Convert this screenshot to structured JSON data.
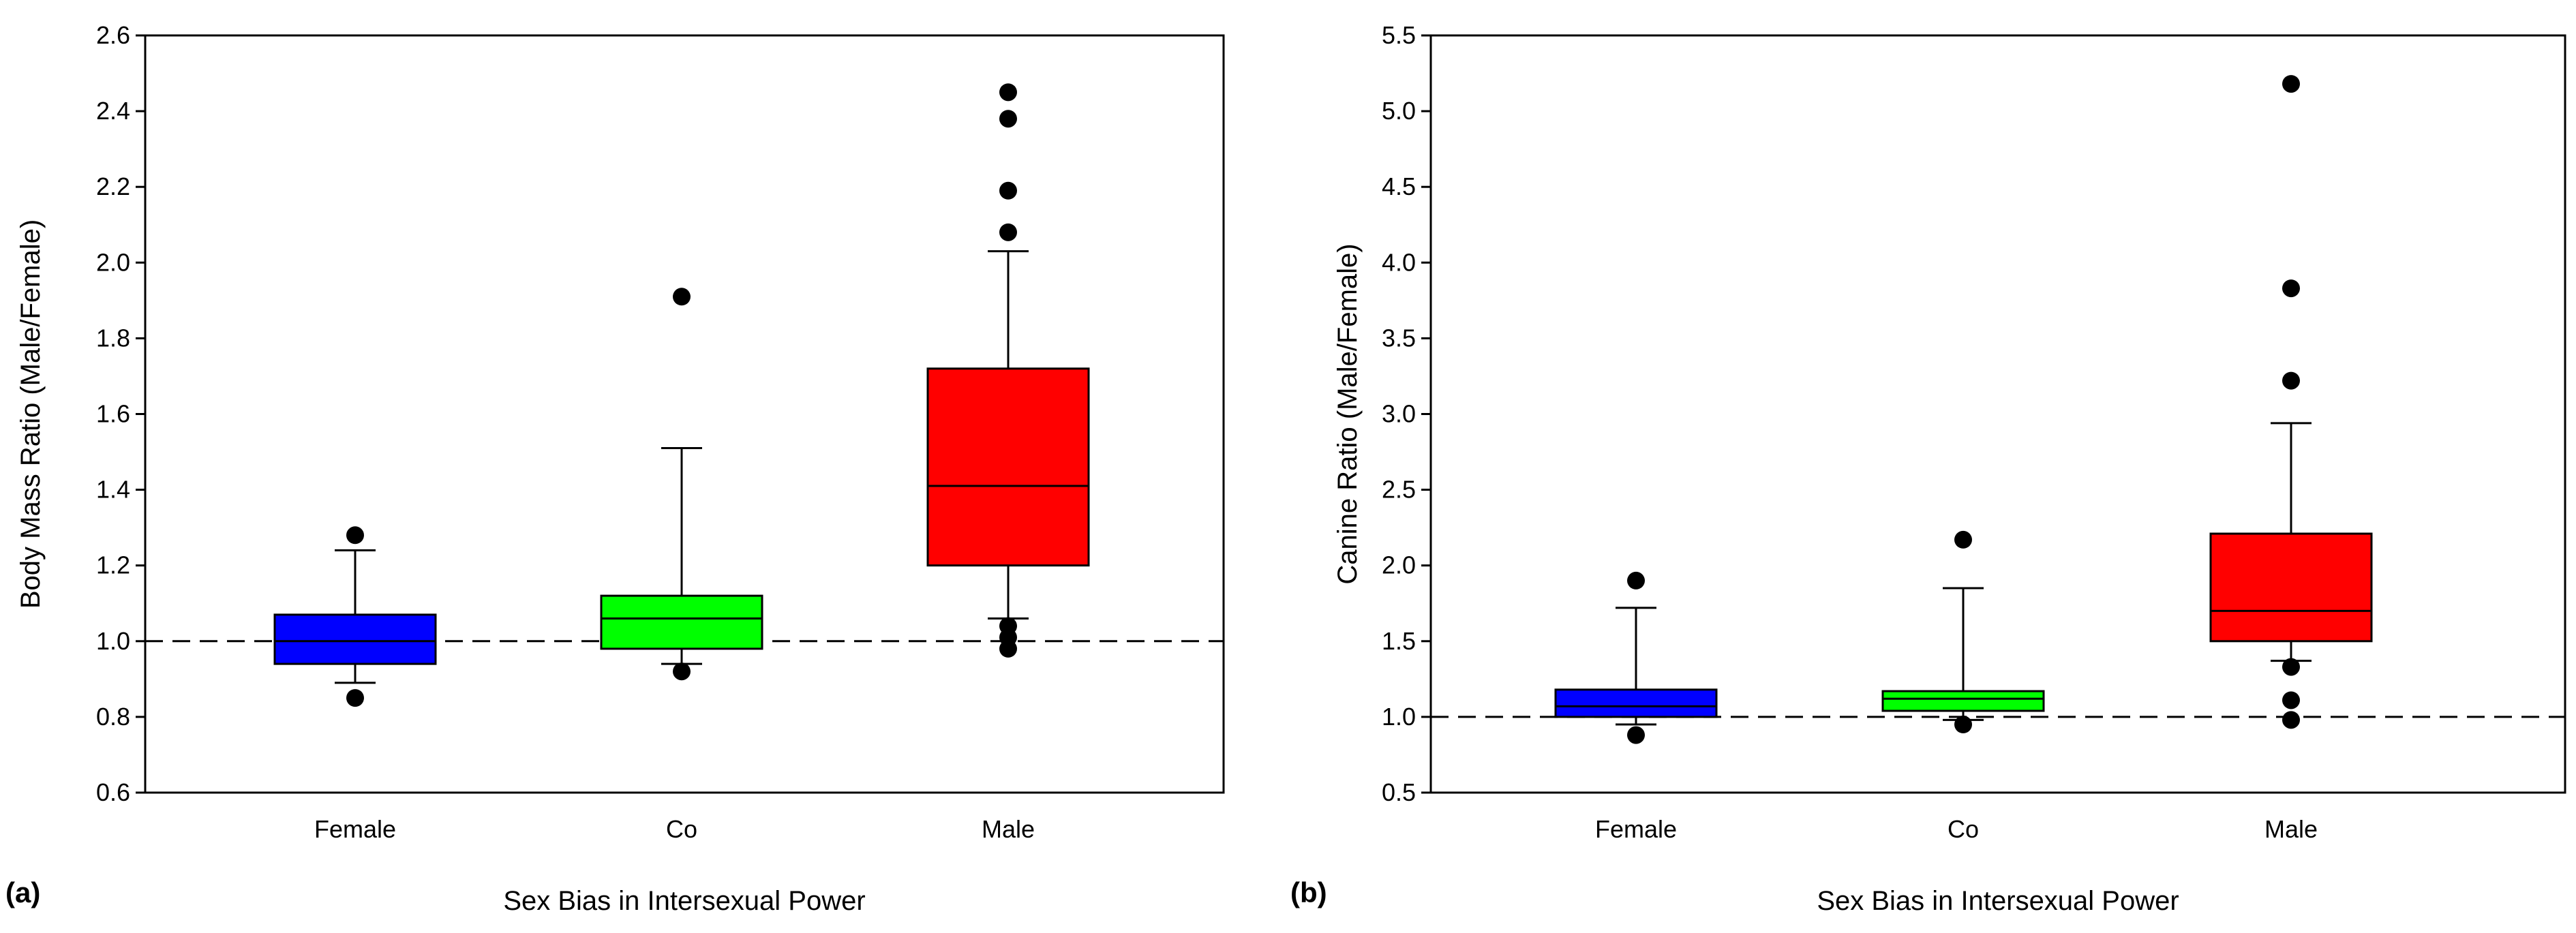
{
  "chart_data": [
    {
      "panel_label": "(a)",
      "type": "box",
      "xlabel": "Sex Bias in Intersexual Power",
      "ylabel": "Body Mass Ratio (Male/Female)",
      "ylim": [
        0.6,
        2.6
      ],
      "yticks": [
        0.6,
        0.8,
        1.0,
        1.2,
        1.4,
        1.6,
        1.8,
        2.0,
        2.2,
        2.4,
        2.6
      ],
      "ytick_labels": [
        "0.6",
        "0.8",
        "1.0",
        "1.2",
        "1.4",
        "1.6",
        "1.8",
        "2.0",
        "2.2",
        "2.4",
        "2.6"
      ],
      "reference_line": 1.0,
      "categories": [
        "Female",
        "Co",
        "Male"
      ],
      "boxes": [
        {
          "category": "Female",
          "color": "#0000FF",
          "q1": 0.94,
          "median": 1.0,
          "q3": 1.07,
          "whisker_low": 0.89,
          "whisker_high": 1.24,
          "outliers": [
            0.85,
            1.28
          ]
        },
        {
          "category": "Co",
          "color": "#00FF00",
          "q1": 0.98,
          "median": 1.06,
          "q3": 1.12,
          "whisker_low": 0.94,
          "whisker_high": 1.51,
          "outliers": [
            0.92,
            1.91
          ]
        },
        {
          "category": "Male",
          "color": "#FF0000",
          "q1": 1.2,
          "median": 1.41,
          "q3": 1.72,
          "whisker_low": 1.06,
          "whisker_high": 2.03,
          "outliers": [
            0.98,
            1.01,
            1.04,
            2.08,
            2.19,
            2.38,
            2.45
          ]
        }
      ]
    },
    {
      "panel_label": "(b)",
      "type": "box",
      "xlabel": "Sex Bias in Intersexual Power",
      "ylabel": "Canine Ratio (Male/Female)",
      "ylim": [
        0.5,
        5.5
      ],
      "yticks": [
        0.5,
        1.0,
        1.5,
        2.0,
        2.5,
        3.0,
        3.5,
        4.0,
        4.5,
        5.0,
        5.5
      ],
      "ytick_labels": [
        "0.5",
        "1.0",
        "1.5",
        "2.0",
        "2.5",
        "3.0",
        "3.5",
        "4.0",
        "4.5",
        "5.0",
        "5.5"
      ],
      "reference_line": 1.0,
      "categories": [
        "Female",
        "Co",
        "Male"
      ],
      "boxes": [
        {
          "category": "Female",
          "color": "#0000FF",
          "q1": 1.0,
          "median": 1.07,
          "q3": 1.18,
          "whisker_low": 0.95,
          "whisker_high": 1.72,
          "outliers": [
            0.88,
            1.9
          ]
        },
        {
          "category": "Co",
          "color": "#00FF00",
          "q1": 1.04,
          "median": 1.12,
          "q3": 1.17,
          "whisker_low": 0.98,
          "whisker_high": 1.85,
          "outliers": [
            0.95,
            2.17
          ]
        },
        {
          "category": "Male",
          "color": "#FF0000",
          "q1": 1.5,
          "median": 1.7,
          "q3": 2.21,
          "whisker_low": 1.37,
          "whisker_high": 2.94,
          "outliers": [
            0.98,
            1.11,
            1.33,
            3.22,
            3.83,
            5.18
          ]
        }
      ]
    }
  ]
}
